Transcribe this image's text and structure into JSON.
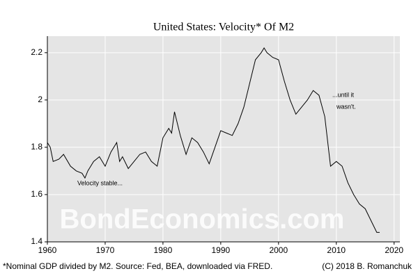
{
  "chart_data": {
    "type": "line",
    "title": "United States: Velocity* Of M2",
    "footnote": "*Nominal GDP divided by M2. Source: Fed, BEA, downloaded via FRED.",
    "credit": "(C) 2018 B. Romanchuk",
    "watermark": "BondEconomics.com",
    "annotations": [
      "Velocity stable...",
      "...until it",
      "wasn't."
    ],
    "x": [
      1960,
      1960.5,
      1961,
      1962,
      1962.8,
      1964,
      1965,
      1966,
      1966.5,
      1967,
      1968,
      1969,
      1970,
      1971,
      1972,
      1972.5,
      1973,
      1974,
      1975,
      1976,
      1977,
      1978,
      1979,
      1980,
      1981,
      1981.5,
      1982,
      1982.5,
      1983,
      1984,
      1985,
      1986,
      1987,
      1988,
      1989,
      1990,
      1991,
      1992,
      1993,
      1994,
      1995,
      1996,
      1997,
      1997.5,
      1998,
      1999,
      2000,
      2001,
      2002,
      2003,
      2004,
      2005,
      2006,
      2007,
      2008,
      2009,
      2010,
      2011,
      2012,
      2013,
      2014,
      2015,
      2016,
      2017,
      2017.5
    ],
    "series": [
      {
        "name": "Velocity of M2",
        "color": "#000000",
        "values": [
          1.82,
          1.8,
          1.74,
          1.75,
          1.77,
          1.72,
          1.7,
          1.69,
          1.67,
          1.7,
          1.74,
          1.76,
          1.72,
          1.78,
          1.82,
          1.74,
          1.76,
          1.71,
          1.74,
          1.77,
          1.78,
          1.74,
          1.72,
          1.84,
          1.88,
          1.86,
          1.95,
          1.9,
          1.85,
          1.77,
          1.84,
          1.82,
          1.78,
          1.73,
          1.8,
          1.87,
          1.86,
          1.85,
          1.9,
          1.97,
          2.07,
          2.17,
          2.2,
          2.22,
          2.2,
          2.18,
          2.17,
          2.08,
          2.0,
          1.94,
          1.97,
          2.0,
          2.04,
          2.02,
          1.93,
          1.72,
          1.74,
          1.72,
          1.65,
          1.6,
          1.56,
          1.54,
          1.49,
          1.44,
          1.44
        ]
      }
    ],
    "xlim": [
      1960,
      2021
    ],
    "xticks": [
      1960,
      1970,
      1980,
      1990,
      2000,
      2010,
      2020
    ],
    "ylim": [
      1.4,
      2.27
    ],
    "yticks": [
      1.4,
      1.6,
      1.8,
      2.0,
      2.2
    ],
    "grid": true
  }
}
